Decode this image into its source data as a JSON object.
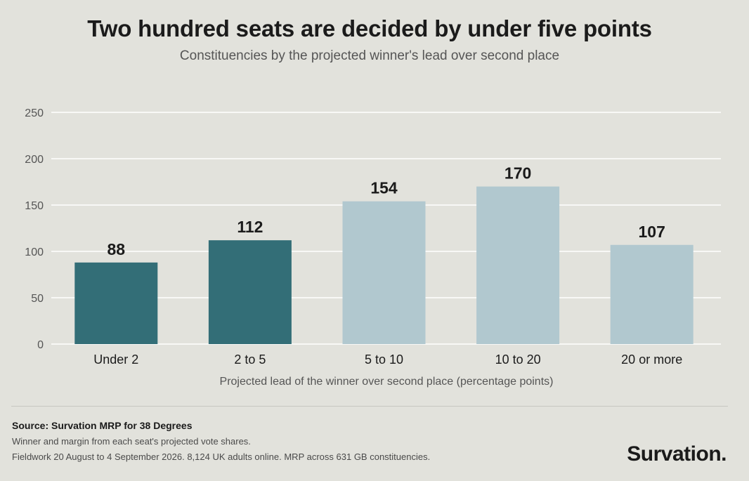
{
  "header": {
    "title": "Two hundred seats are decided by under five points",
    "subtitle": "Constituencies by the projected winner's lead over second place"
  },
  "chart_data": {
    "type": "bar",
    "title": "Two hundred seats are decided by under five points",
    "subtitle": "Constituencies by the projected winner's lead over second place",
    "xlabel": "Projected lead of the winner over second place (percentage points)",
    "ylabel": "",
    "categories": [
      "Under 2",
      "2 to 5",
      "5 to 10",
      "10 to 20",
      "20 or more"
    ],
    "values": [
      88,
      112,
      154,
      170,
      107
    ],
    "data_labels": [
      "88",
      "112",
      "154",
      "170",
      "107"
    ],
    "ylim": [
      0,
      250
    ],
    "yticks": [
      0,
      50,
      100,
      150,
      200,
      250
    ],
    "ytick_labels": [
      "0",
      "50",
      "100",
      "150",
      "200",
      "250"
    ],
    "grid": true,
    "legend": "none",
    "bar_colors": [
      "#336e77",
      "#336e77",
      "#b1c8cf",
      "#b1c8cf",
      "#b1c8cf"
    ]
  },
  "footer": {
    "source": "Source: Survation MRP for 38 Degrees",
    "note1": "Winner and margin from each seat's projected vote shares.",
    "note2": "Fieldwork 20 August to 4 September 2026. 8,124 UK adults online. MRP across 631 GB constituencies.",
    "brand": "Survation."
  },
  "colors": {
    "background": "#e2e2dc",
    "gridline": "#ffffff",
    "dark_bar": "#336e77",
    "light_bar": "#b1c8cf"
  }
}
